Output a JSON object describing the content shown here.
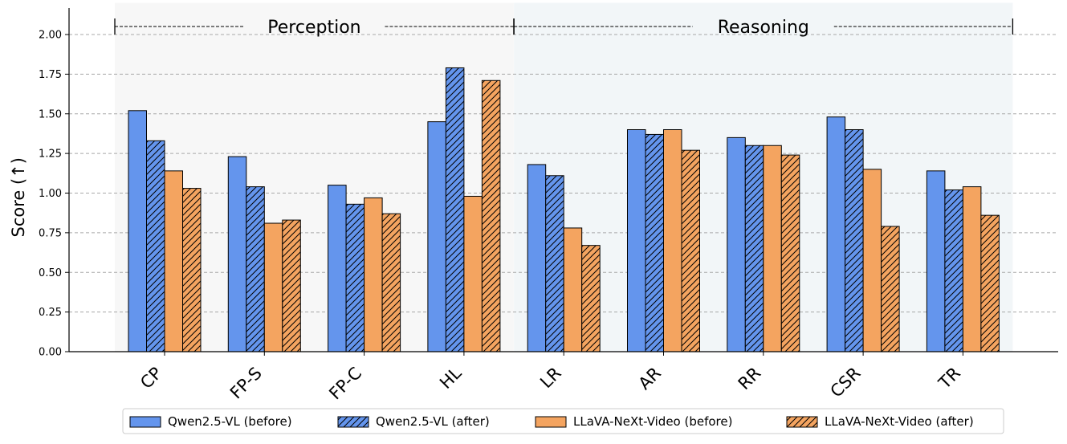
{
  "chart_data": {
    "type": "bar",
    "title": "",
    "xlabel": "",
    "ylabel": "Score (↑)",
    "ylim": [
      0,
      2.2
    ],
    "yticks": [
      "0.00",
      "0.25",
      "0.50",
      "0.75",
      "1.00",
      "1.25",
      "1.50",
      "1.75",
      "2.00"
    ],
    "grid": "horizontal dashed",
    "categories": [
      "CP",
      "FP-S",
      "FP-C",
      "HL",
      "LR",
      "AR",
      "RR",
      "CSR",
      "TR"
    ],
    "groups": [
      {
        "label": "Perception",
        "categories": [
          "CP",
          "FP-S",
          "FP-C",
          "HL"
        ],
        "shade": "#f7f7f7"
      },
      {
        "label": "Reasoning",
        "categories": [
          "LR",
          "AR",
          "RR",
          "CSR",
          "TR"
        ],
        "shade": "#f2f6f8"
      }
    ],
    "series": [
      {
        "name": "Qwen2.5-VL (before)",
        "color": "#6495ed",
        "hatch": false,
        "values": [
          1.52,
          1.23,
          1.05,
          1.45,
          1.18,
          1.4,
          1.35,
          1.48,
          1.14
        ]
      },
      {
        "name": "Qwen2.5-VL (after)",
        "color": "#6495ed",
        "hatch": true,
        "values": [
          1.33,
          1.04,
          0.93,
          1.79,
          1.11,
          1.37,
          1.3,
          1.4,
          1.02
        ]
      },
      {
        "name": "LLaVA-NeXt-Video (before)",
        "color": "#f4a460",
        "hatch": false,
        "values": [
          1.14,
          0.81,
          0.97,
          0.98,
          0.78,
          1.4,
          1.3,
          1.15,
          1.04
        ]
      },
      {
        "name": "LLaVA-NeXt-Video (after)",
        "color": "#f4a460",
        "hatch": true,
        "values": [
          1.03,
          0.83,
          0.87,
          1.71,
          0.67,
          1.27,
          1.24,
          0.79,
          0.86
        ]
      }
    ],
    "legend_position": "bottom-center"
  }
}
